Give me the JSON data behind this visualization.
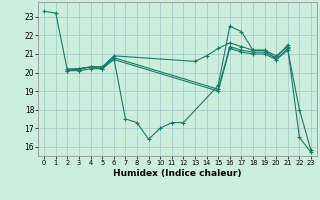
{
  "xlabel": "Humidex (Indice chaleur)",
  "background_color": "#cceedd",
  "grid_color": "#aacccc",
  "line_color": "#1a7a6a",
  "xlim": [
    -0.5,
    23.5
  ],
  "ylim": [
    15.5,
    23.8
  ],
  "yticks": [
    16,
    17,
    18,
    19,
    20,
    21,
    22,
    23
  ],
  "xticks": [
    0,
    1,
    2,
    3,
    4,
    5,
    6,
    7,
    8,
    9,
    10,
    11,
    12,
    13,
    14,
    15,
    16,
    17,
    18,
    19,
    20,
    21,
    22,
    23
  ],
  "series": [
    {
      "x": [
        0,
        1,
        2,
        3,
        4,
        5,
        6,
        7,
        8,
        9,
        10,
        11,
        12,
        15,
        16,
        17,
        18,
        19,
        20,
        21,
        22,
        23
      ],
      "y": [
        23.3,
        23.2,
        20.1,
        20.2,
        20.3,
        20.3,
        20.8,
        17.5,
        17.3,
        16.4,
        17.0,
        17.3,
        17.3,
        19.3,
        22.5,
        22.2,
        21.2,
        21.2,
        20.7,
        21.2,
        18.0,
        15.8
      ]
    },
    {
      "x": [
        2,
        3,
        4,
        5,
        6,
        15,
        16,
        17,
        18,
        19,
        20,
        21
      ],
      "y": [
        20.1,
        20.2,
        20.3,
        20.2,
        20.8,
        19.1,
        21.4,
        21.2,
        21.1,
        21.1,
        20.8,
        21.5
      ]
    },
    {
      "x": [
        2,
        3,
        4,
        5,
        6,
        15,
        16,
        17,
        18,
        19,
        20,
        21,
        22,
        23
      ],
      "y": [
        20.1,
        20.1,
        20.2,
        20.2,
        20.7,
        19.0,
        21.3,
        21.1,
        21.0,
        21.0,
        20.7,
        21.3,
        16.5,
        15.7
      ]
    },
    {
      "x": [
        2,
        3,
        4,
        5,
        6,
        13,
        14,
        15,
        16,
        17,
        18,
        19,
        20,
        21
      ],
      "y": [
        20.2,
        20.2,
        20.3,
        20.3,
        20.9,
        20.6,
        20.9,
        21.3,
        21.6,
        21.4,
        21.2,
        21.2,
        20.9,
        21.4
      ]
    }
  ]
}
